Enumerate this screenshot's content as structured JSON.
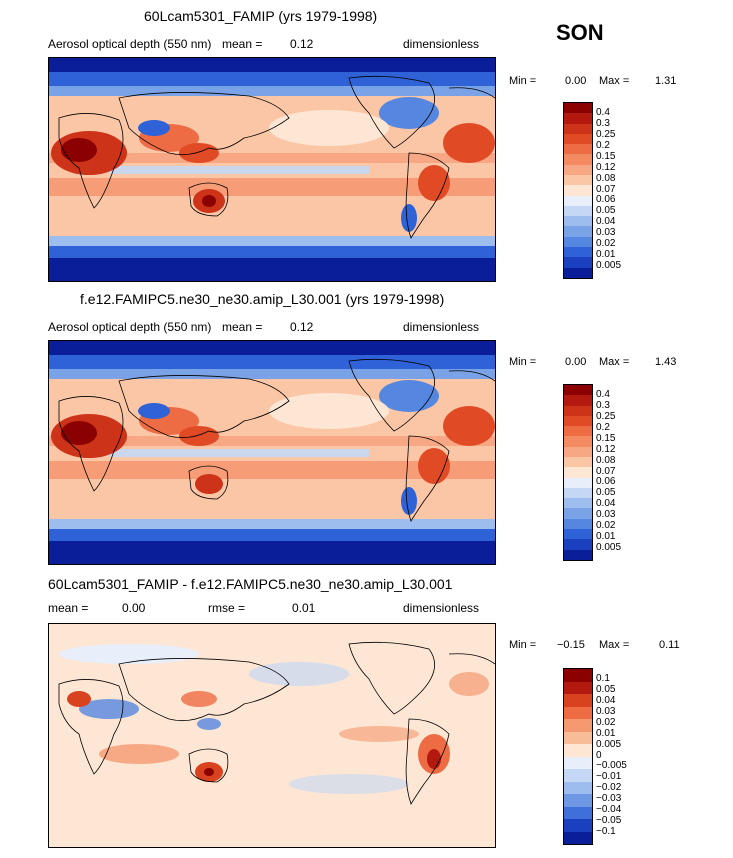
{
  "season": "SON",
  "panels": [
    {
      "title": "60Lcam5301_FAMIP (yrs 1979-1998)",
      "field": "Aerosol optical depth (550 nm)",
      "stat1_label": "mean =",
      "stat1_value": "0.12",
      "stat2_label": "",
      "stat2_value": "",
      "units": "dimensionless",
      "min_label": "Min =",
      "min_value": "0.00",
      "max_label": "Max =",
      "max_value": "1.31",
      "colorbar": {
        "colors": [
          "#8b0000",
          "#b3190f",
          "#cc3319",
          "#e04b26",
          "#ee6c44",
          "#f48a62",
          "#f8a784",
          "#fbc6a6",
          "#fde6d4",
          "#e8eefa",
          "#c4d7f4",
          "#9dbdee",
          "#7aa3e7",
          "#5587e0",
          "#2f62d6",
          "#1a3fbf",
          "#0a1e99"
        ],
        "labels": [
          "0.4",
          "0.3",
          "0.25",
          "0.2",
          "0.15",
          "0.12",
          "0.08",
          "0.07",
          "0.06",
          "0.05",
          "0.04",
          "0.03",
          "0.02",
          "0.01",
          "0.005"
        ]
      }
    },
    {
      "title": "f.e12.FAMIPC5.ne30_ne30.amip_L30.001 (yrs 1979-1998)",
      "field": "Aerosol optical depth (550 nm)",
      "stat1_label": "mean =",
      "stat1_value": "0.12",
      "stat2_label": "",
      "stat2_value": "",
      "units": "dimensionless",
      "min_label": "Min =",
      "min_value": "0.00",
      "max_label": "Max =",
      "max_value": "1.43",
      "colorbar": {
        "colors": [
          "#8b0000",
          "#b3190f",
          "#cc3319",
          "#e04b26",
          "#ee6c44",
          "#f48a62",
          "#f8a784",
          "#fbc6a6",
          "#fde6d4",
          "#e8eefa",
          "#c4d7f4",
          "#9dbdee",
          "#7aa3e7",
          "#5587e0",
          "#2f62d6",
          "#1a3fbf",
          "#0a1e99"
        ],
        "labels": [
          "0.4",
          "0.3",
          "0.25",
          "0.2",
          "0.15",
          "0.12",
          "0.08",
          "0.07",
          "0.06",
          "0.05",
          "0.04",
          "0.03",
          "0.02",
          "0.01",
          "0.005"
        ]
      }
    },
    {
      "title": "60Lcam5301_FAMIP - f.e12.FAMIPC5.ne30_ne30.amip_L30.001",
      "field": "",
      "stat1_label": "mean =",
      "stat1_value": "0.00",
      "stat2_label": "rmse =",
      "stat2_value": "0.01",
      "units": "dimensionless",
      "min_label": "Min =",
      "min_value": "−0.15",
      "max_label": "Max =",
      "max_value": "0.11",
      "colorbar": {
        "colors": [
          "#8b0000",
          "#b3190f",
          "#d9421f",
          "#ee6c44",
          "#f59a70",
          "#f9bc98",
          "#fde6d4",
          "#e8eefa",
          "#c4d7f4",
          "#9dbdee",
          "#6f98e4",
          "#3f6fd9",
          "#1a3fbf",
          "#0a1e99"
        ],
        "labels": [
          "0.1",
          "0.05",
          "0.04",
          "0.03",
          "0.02",
          "0.01",
          "0.005",
          "0",
          "−0.005",
          "−0.01",
          "−0.02",
          "−0.03",
          "−0.04",
          "−0.05",
          "−0.1"
        ]
      }
    }
  ]
}
